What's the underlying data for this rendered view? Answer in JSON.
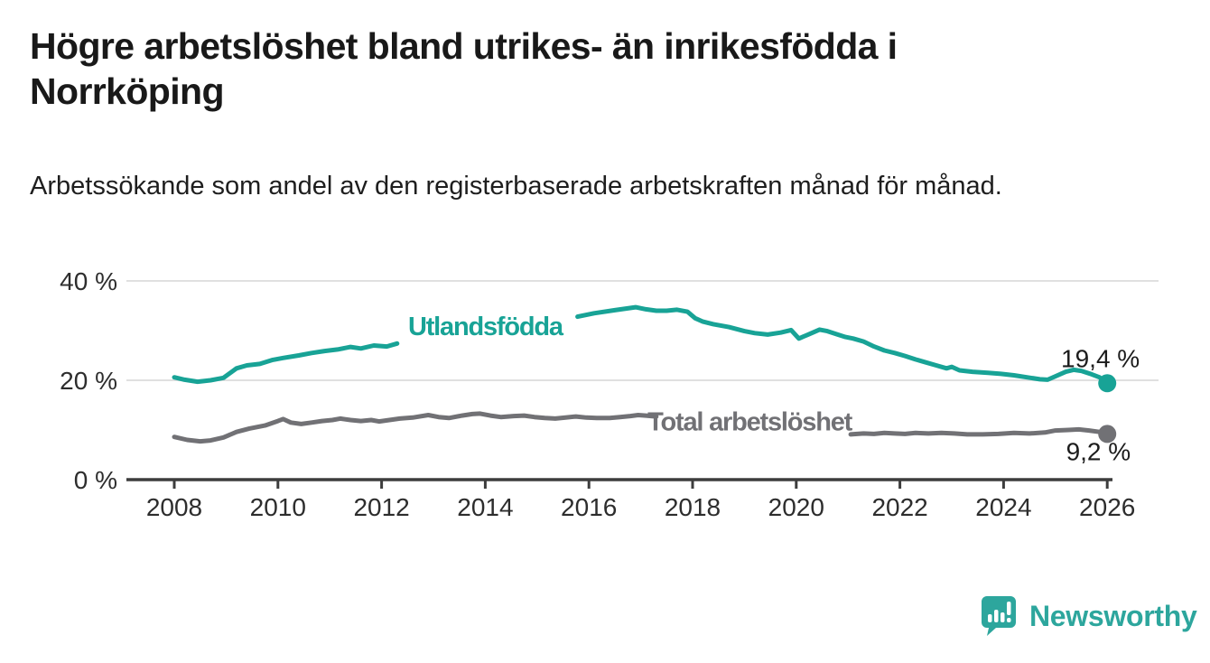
{
  "title": {
    "text": "Högre arbetslöshet bland utrikes- än inrikesfödda i Norrköping"
  },
  "subtitle": {
    "text": "Arbetssökande som andel av den registerbaserade arbetskraften månad för månad."
  },
  "branding": {
    "wordmark": "Newsworthy",
    "color": "#2da69d"
  },
  "chart_data": {
    "type": "line",
    "x_unit": "decimal_year",
    "xlim": [
      2007.0,
      2027.0
    ],
    "ylim": [
      0,
      42
    ],
    "grid": "horizontal",
    "x_ticks": [
      2008,
      2010,
      2012,
      2014,
      2016,
      2018,
      2020,
      2022,
      2024,
      2026
    ],
    "y_ticks": [
      {
        "value": 0,
        "label": "0 %"
      },
      {
        "value": 20,
        "label": "20 %"
      },
      {
        "value": 40,
        "label": "40 %"
      }
    ],
    "colors": {
      "axis": "#3d3d3d",
      "gridline": "#e0e0e0",
      "tick_text": "#2d2d2d",
      "value_text": "#1c1c1c"
    },
    "series": [
      {
        "name": "Utlandsfödda",
        "color": "#18a396",
        "line_width": 5,
        "end_value": 19.4,
        "end_label": "19,4 %",
        "end_label_position": "above",
        "inline_label": {
          "text": "Utlandsfödda",
          "year": 2014.0,
          "pct": 30.9
        },
        "segments": [
          [
            [
              2008.0,
              20.6
            ],
            [
              2008.2,
              20.1
            ],
            [
              2008.45,
              19.7
            ],
            [
              2008.7,
              20.0
            ],
            [
              2008.95,
              20.5
            ],
            [
              2009.2,
              22.4
            ],
            [
              2009.4,
              23.0
            ],
            [
              2009.65,
              23.3
            ],
            [
              2009.9,
              24.1
            ],
            [
              2010.1,
              24.5
            ],
            [
              2010.4,
              25.0
            ],
            [
              2010.65,
              25.5
            ],
            [
              2010.9,
              25.9
            ],
            [
              2011.15,
              26.2
            ],
            [
              2011.4,
              26.7
            ],
            [
              2011.6,
              26.4
            ],
            [
              2011.85,
              27.0
            ],
            [
              2012.1,
              26.8
            ],
            [
              2012.3,
              27.4
            ]
          ],
          [
            [
              2015.78,
              32.8
            ],
            [
              2016.1,
              33.5
            ],
            [
              2016.5,
              34.1
            ],
            [
              2016.9,
              34.7
            ],
            [
              2017.1,
              34.3
            ],
            [
              2017.3,
              34.0
            ],
            [
              2017.5,
              34.0
            ],
            [
              2017.7,
              34.2
            ],
            [
              2017.9,
              33.8
            ],
            [
              2018.05,
              32.5
            ],
            [
              2018.2,
              31.8
            ],
            [
              2018.4,
              31.3
            ],
            [
              2018.7,
              30.7
            ],
            [
              2019.0,
              29.9
            ],
            [
              2019.2,
              29.5
            ],
            [
              2019.45,
              29.2
            ],
            [
              2019.7,
              29.6
            ],
            [
              2019.9,
              30.1
            ],
            [
              2020.05,
              28.4
            ],
            [
              2020.25,
              29.3
            ],
            [
              2020.45,
              30.2
            ],
            [
              2020.6,
              29.9
            ],
            [
              2020.8,
              29.2
            ],
            [
              2020.95,
              28.7
            ],
            [
              2021.1,
              28.4
            ],
            [
              2021.3,
              27.8
            ],
            [
              2021.5,
              26.8
            ],
            [
              2021.7,
              26.0
            ],
            [
              2021.9,
              25.5
            ],
            [
              2022.1,
              24.9
            ],
            [
              2022.3,
              24.2
            ],
            [
              2022.5,
              23.6
            ],
            [
              2022.7,
              23.0
            ],
            [
              2022.9,
              22.4
            ],
            [
              2023.0,
              22.7
            ],
            [
              2023.15,
              22.0
            ],
            [
              2023.4,
              21.7
            ],
            [
              2023.7,
              21.5
            ],
            [
              2023.95,
              21.3
            ],
            [
              2024.2,
              21.0
            ],
            [
              2024.45,
              20.6
            ],
            [
              2024.7,
              20.2
            ],
            [
              2024.85,
              20.1
            ],
            [
              2025.0,
              20.8
            ],
            [
              2025.2,
              21.7
            ],
            [
              2025.35,
              22.1
            ],
            [
              2025.5,
              21.9
            ],
            [
              2025.7,
              21.2
            ],
            [
              2025.85,
              20.6
            ],
            [
              2026.0,
              19.4
            ]
          ]
        ]
      },
      {
        "name": "Total arbetslöshet",
        "color": "#717175",
        "line_width": 5,
        "end_value": 9.2,
        "end_label": "9,2 %",
        "end_label_position": "below",
        "inline_label": {
          "text": "Total arbetslöshet",
          "year": 2019.1,
          "pct": 11.7
        },
        "segments": [
          [
            [
              2008.0,
              8.6
            ],
            [
              2008.25,
              8.0
            ],
            [
              2008.5,
              7.7
            ],
            [
              2008.7,
              7.9
            ],
            [
              2008.95,
              8.5
            ],
            [
              2009.2,
              9.6
            ],
            [
              2009.45,
              10.3
            ],
            [
              2009.75,
              10.9
            ],
            [
              2010.0,
              11.8
            ],
            [
              2010.1,
              12.2
            ],
            [
              2010.25,
              11.5
            ],
            [
              2010.45,
              11.2
            ],
            [
              2010.65,
              11.5
            ],
            [
              2010.85,
              11.8
            ],
            [
              2011.05,
              12.0
            ],
            [
              2011.2,
              12.3
            ],
            [
              2011.4,
              12.0
            ],
            [
              2011.6,
              11.8
            ],
            [
              2011.8,
              12.0
            ],
            [
              2011.95,
              11.7
            ],
            [
              2012.15,
              12.0
            ],
            [
              2012.35,
              12.3
            ],
            [
              2012.6,
              12.5
            ],
            [
              2012.9,
              13.0
            ],
            [
              2013.1,
              12.6
            ],
            [
              2013.3,
              12.4
            ],
            [
              2013.55,
              12.9
            ],
            [
              2013.75,
              13.2
            ],
            [
              2013.9,
              13.3
            ],
            [
              2014.1,
              12.9
            ],
            [
              2014.3,
              12.6
            ],
            [
              2014.55,
              12.8
            ],
            [
              2014.75,
              12.9
            ],
            [
              2014.95,
              12.6
            ],
            [
              2015.15,
              12.4
            ],
            [
              2015.35,
              12.3
            ],
            [
              2015.55,
              12.5
            ],
            [
              2015.75,
              12.7
            ],
            [
              2015.95,
              12.5
            ],
            [
              2016.15,
              12.4
            ],
            [
              2016.4,
              12.4
            ],
            [
              2016.6,
              12.6
            ],
            [
              2016.8,
              12.8
            ],
            [
              2016.95,
              13.0
            ],
            [
              2017.1,
              12.9
            ],
            [
              2017.3,
              12.7
            ]
          ],
          [
            [
              2021.05,
              9.1
            ],
            [
              2021.3,
              9.3
            ],
            [
              2021.5,
              9.2
            ],
            [
              2021.7,
              9.4
            ],
            [
              2021.9,
              9.3
            ],
            [
              2022.1,
              9.2
            ],
            [
              2022.3,
              9.4
            ],
            [
              2022.55,
              9.3
            ],
            [
              2022.8,
              9.4
            ],
            [
              2023.05,
              9.3
            ],
            [
              2023.3,
              9.1
            ],
            [
              2023.6,
              9.1
            ],
            [
              2023.9,
              9.2
            ],
            [
              2024.2,
              9.4
            ],
            [
              2024.5,
              9.3
            ],
            [
              2024.8,
              9.5
            ],
            [
              2025.0,
              9.9
            ],
            [
              2025.25,
              10.0
            ],
            [
              2025.45,
              10.1
            ],
            [
              2025.65,
              9.9
            ],
            [
              2025.85,
              9.6
            ],
            [
              2026.0,
              9.2
            ]
          ]
        ]
      }
    ]
  }
}
